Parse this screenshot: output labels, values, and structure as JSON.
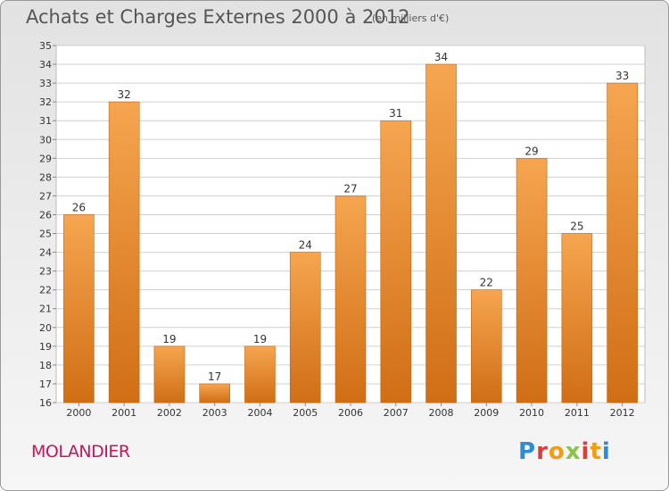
{
  "header": {
    "title": "Achats et Charges Externes 2000 à 2012",
    "subtitle": "(en milliers d'€)"
  },
  "footer": {
    "commune": "MOLANDIER",
    "logo_text": "Proxiti"
  },
  "colors": {
    "bar_top": "#f6a550",
    "bar_bottom": "#d06e15",
    "grid": "#d0d0d0",
    "commune": "#c2185b"
  },
  "chart_data": {
    "type": "bar",
    "title": "Achats et Charges Externes 2000 à 2012",
    "subtitle": "(en milliers d'€)",
    "categories": [
      "2000",
      "2001",
      "2002",
      "2003",
      "2004",
      "2005",
      "2006",
      "2007",
      "2008",
      "2009",
      "2010",
      "2011",
      "2012"
    ],
    "values": [
      26,
      32,
      19,
      17,
      19,
      24,
      27,
      31,
      34,
      22,
      29,
      25,
      33
    ],
    "ylim": [
      16,
      35
    ],
    "yticks": [
      16,
      17,
      18,
      19,
      20,
      21,
      22,
      23,
      24,
      25,
      26,
      27,
      28,
      29,
      30,
      31,
      32,
      33,
      34,
      35
    ],
    "grid": true,
    "data_labels": true
  }
}
